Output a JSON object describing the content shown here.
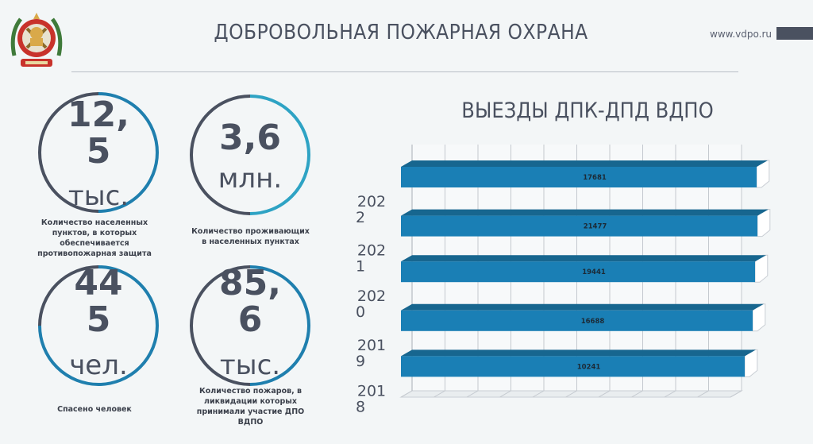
{
  "header": {
    "title": "ДОБРОВОЛЬНАЯ ПОЖАРНАЯ ОХРАНА",
    "site": "www.vdpo.ru"
  },
  "stats": [
    {
      "value": "12,\n5",
      "unit": "тыс.",
      "caption": "Количество населенных пунктов, в которых обеспечивается противопожарная защита",
      "progress": 0.5
    },
    {
      "value": "3,6",
      "unit": "млн.",
      "caption": "Количество проживающих в населенных пунктах",
      "progress": 0.5
    },
    {
      "value": "44\n5",
      "unit": "чел.",
      "caption": "Спасено человек",
      "progress": 0.75
    },
    {
      "value": "85,\n6",
      "unit": "тыс.",
      "caption": "Количество пожаров, в ликвидации которых принимали участие ДПО ВДПО",
      "progress": 0.5
    }
  ],
  "colors": {
    "dark": "#4a5160",
    "accent_light": "#2ea3c4",
    "accent_mid": "#1f7fae",
    "bar": "#1a7fb5",
    "bar_top": "#17668f"
  },
  "chart_data": {
    "type": "bar",
    "orientation": "horizontal",
    "title": "ВЫЕЗДЫ ДПК-ДПД ВДПО",
    "categories": [
      "2022",
      "2021",
      "2020",
      "2019",
      "2018"
    ],
    "values": [
      17681,
      21477,
      19441,
      16688,
      10241
    ],
    "data_labels": [
      "17681",
      "21477",
      "19441",
      "16688",
      "10241"
    ],
    "style": "3d",
    "grid": true
  }
}
